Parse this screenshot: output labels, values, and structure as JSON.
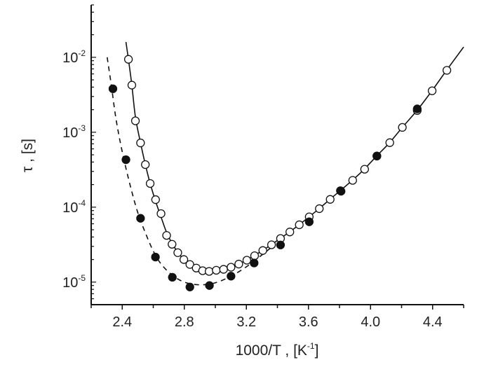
{
  "chart_data": {
    "type": "scatter",
    "title": "",
    "xlabel": "1000/T , [K",
    "xlabel_sup": "-1",
    "xlabel_end": "]",
    "ylabel": "τ , [s]",
    "xlim": [
      2.2,
      4.6
    ],
    "ylim": [
      5e-06,
      0.05
    ],
    "yscale": "log",
    "grid": false,
    "x_ticks": [
      2.4,
      2.8,
      3.2,
      3.6,
      4.0,
      4.4
    ],
    "x_tick_labels": [
      "2.4",
      "2.8",
      "3.2",
      "3.6",
      "4.0",
      "4.4"
    ],
    "y_ticks": [
      0.01,
      0.001,
      0.0001,
      1e-05
    ],
    "y_tick_labels": [
      {
        "base": "10",
        "exp": "-2"
      },
      {
        "base": "10",
        "exp": "-3"
      },
      {
        "base": "10",
        "exp": "-4"
      },
      {
        "base": "10",
        "exp": "-5"
      }
    ],
    "series": [
      {
        "marker": "open-circle",
        "color": "#111111",
        "x": [
          2.44,
          2.462,
          2.485,
          2.518,
          2.549,
          2.58,
          2.615,
          2.65,
          2.686,
          2.721,
          2.758,
          2.797,
          2.836,
          2.877,
          2.918,
          2.96,
          3.006,
          3.053,
          3.101,
          3.151,
          3.203,
          3.253,
          3.306,
          3.362,
          3.42,
          3.48,
          3.541,
          3.605,
          3.67,
          3.74,
          3.806,
          3.885,
          3.962,
          4.041,
          4.124,
          4.205,
          4.301,
          4.397,
          4.492
        ],
        "y": [
          0.0094,
          0.00425,
          0.00142,
          0.00072,
          0.00037,
          0.000207,
          0.000126,
          8.2e-05,
          4.2e-05,
          3.2e-05,
          2.47e-05,
          2e-05,
          1.72e-05,
          1.54e-05,
          1.42e-05,
          1.39e-05,
          1.44e-05,
          1.48e-05,
          1.58e-05,
          1.74e-05,
          1.96e-05,
          2.25e-05,
          2.64e-05,
          3.15e-05,
          3.82e-05,
          4.67e-05,
          5.82e-05,
          7.43e-05,
          9.55e-05,
          0.000127,
          0.000166,
          0.000228,
          0.000321,
          0.000483,
          0.000726,
          0.00116,
          0.00195,
          0.00357,
          0.0067
        ]
      },
      {
        "marker": "filled-circle",
        "color": "#111111",
        "x": [
          2.34,
          2.424,
          2.518,
          2.614,
          2.723,
          2.836,
          2.962,
          3.101,
          3.25,
          3.42,
          3.605,
          3.81,
          4.041,
          4.301
        ],
        "y": [
          0.0038,
          0.00043,
          7.1e-05,
          2.16e-05,
          1.16e-05,
          8.6e-06,
          9e-06,
          1.2e-05,
          1.8e-05,
          3.13e-05,
          6.38e-05,
          0.000163,
          0.00048,
          0.00205
        ]
      }
    ],
    "fit_lines": [
      {
        "style": "solid",
        "x": [
          2.424,
          2.44,
          2.462,
          2.485,
          2.518,
          2.549,
          2.58,
          2.615,
          2.65,
          2.686,
          2.721,
          2.758,
          2.797,
          2.836,
          2.877,
          2.918,
          2.96,
          3.006,
          3.053,
          3.101,
          3.151,
          3.203,
          3.253,
          3.306,
          3.362,
          3.42,
          3.48,
          3.541,
          3.605,
          3.67,
          3.74,
          3.806,
          3.885,
          3.962,
          4.041,
          4.124,
          4.205,
          4.301,
          4.397,
          4.492,
          4.6
        ],
        "y": [
          0.016,
          0.0094,
          0.00425,
          0.0016,
          0.00072,
          0.00037,
          0.000207,
          0.00012,
          7.4e-05,
          4.6e-05,
          3.3e-05,
          2.5e-05,
          2e-05,
          1.7e-05,
          1.52e-05,
          1.41e-05,
          1.37e-05,
          1.4e-05,
          1.48e-05,
          1.6e-05,
          1.76e-05,
          1.98e-05,
          2.27e-05,
          2.66e-05,
          3.17e-05,
          3.84e-05,
          4.7e-05,
          5.84e-05,
          7.45e-05,
          9.6e-05,
          0.000128,
          0.000167,
          0.00023,
          0.000325,
          0.000485,
          0.00073,
          0.00116,
          0.00197,
          0.0036,
          0.0068,
          0.0137
        ]
      },
      {
        "style": "dashed",
        "x": [
          2.303,
          2.33,
          2.36,
          2.4,
          2.45,
          2.5,
          2.55,
          2.6,
          2.65,
          2.72,
          2.8,
          2.9,
          3.0,
          3.1,
          3.2,
          3.3,
          3.36
        ],
        "y": [
          0.01,
          0.0042,
          0.0015,
          0.00055,
          0.0002,
          8.5e-05,
          4.5e-05,
          2.6e-05,
          1.75e-05,
          1.25e-05,
          1e-05,
          9.2e-06,
          9.8e-06,
          1.2e-05,
          1.6e-05,
          2.3e-05,
          2.9e-05
        ]
      }
    ]
  }
}
